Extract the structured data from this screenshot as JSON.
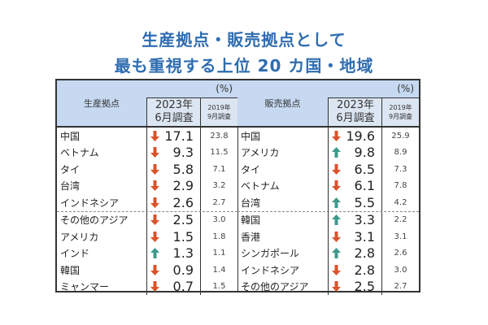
{
  "title": {
    "line1": "生産拠点・販売拠点として",
    "line2": "最も重視する上位 20 カ国・地域"
  },
  "colors": {
    "down": "#d9532b",
    "up": "#3d9a8b",
    "header": "#c6d9f1",
    "subheader": "#dce6f2",
    "title": "#2f6db0"
  },
  "production": {
    "header": "生産拠点",
    "unit": "(%)",
    "col2023": "2023年\n6月調査",
    "col2023_l1": "2023年",
    "col2023_l2": "6月調査",
    "col2019_l1": "2019年",
    "col2019_l2": "9月調査",
    "rows": [
      {
        "name": "中国",
        "trend": "down",
        "v2023": "17.1",
        "v2019": "23.8"
      },
      {
        "name": "ベトナム",
        "trend": "down",
        "v2023": "9.3",
        "v2019": "11.5"
      },
      {
        "name": "タイ",
        "trend": "down",
        "v2023": "5.8",
        "v2019": "7.1"
      },
      {
        "name": "台湾",
        "trend": "down",
        "v2023": "2.9",
        "v2019": "3.2"
      },
      {
        "name": "インドネシア",
        "trend": "down",
        "v2023": "2.6",
        "v2019": "2.7"
      },
      {
        "name": "その他のアジア",
        "trend": "down",
        "v2023": "2.5",
        "v2019": "3.0"
      },
      {
        "name": "アメリカ",
        "trend": "down",
        "v2023": "1.5",
        "v2019": "1.8"
      },
      {
        "name": "インド",
        "trend": "up",
        "v2023": "1.3",
        "v2019": "1.1"
      },
      {
        "name": "韓国",
        "trend": "down",
        "v2023": "0.9",
        "v2019": "1.4"
      },
      {
        "name": "ミャンマー",
        "trend": "down",
        "v2023": "0.7",
        "v2019": "1.5"
      }
    ]
  },
  "sales": {
    "header": "販売拠点",
    "unit": "(%)",
    "col2023_l1": "2023年",
    "col2023_l2": "6月調査",
    "col2019_l1": "2019年",
    "col2019_l2": "9月調査",
    "rows": [
      {
        "name": "中国",
        "trend": "down",
        "v2023": "19.6",
        "v2019": "25.9"
      },
      {
        "name": "アメリカ",
        "trend": "up",
        "v2023": "9.8",
        "v2019": "8.9"
      },
      {
        "name": "タイ",
        "trend": "down",
        "v2023": "6.5",
        "v2019": "7.3"
      },
      {
        "name": "ベトナム",
        "trend": "down",
        "v2023": "6.1",
        "v2019": "7.8"
      },
      {
        "name": "台湾",
        "trend": "up",
        "v2023": "5.5",
        "v2019": "4.2"
      },
      {
        "name": "韓国",
        "trend": "up",
        "v2023": "3.3",
        "v2019": "2.2"
      },
      {
        "name": "香港",
        "trend": "down",
        "v2023": "3.1",
        "v2019": "3.1"
      },
      {
        "name": "シンガポール",
        "trend": "up",
        "v2023": "2.8",
        "v2019": "2.6"
      },
      {
        "name": "インドネシア",
        "trend": "down",
        "v2023": "2.8",
        "v2019": "3.0"
      },
      {
        "name": "その他のアジア",
        "trend": "down",
        "v2023": "2.5",
        "v2019": "2.7"
      }
    ]
  }
}
